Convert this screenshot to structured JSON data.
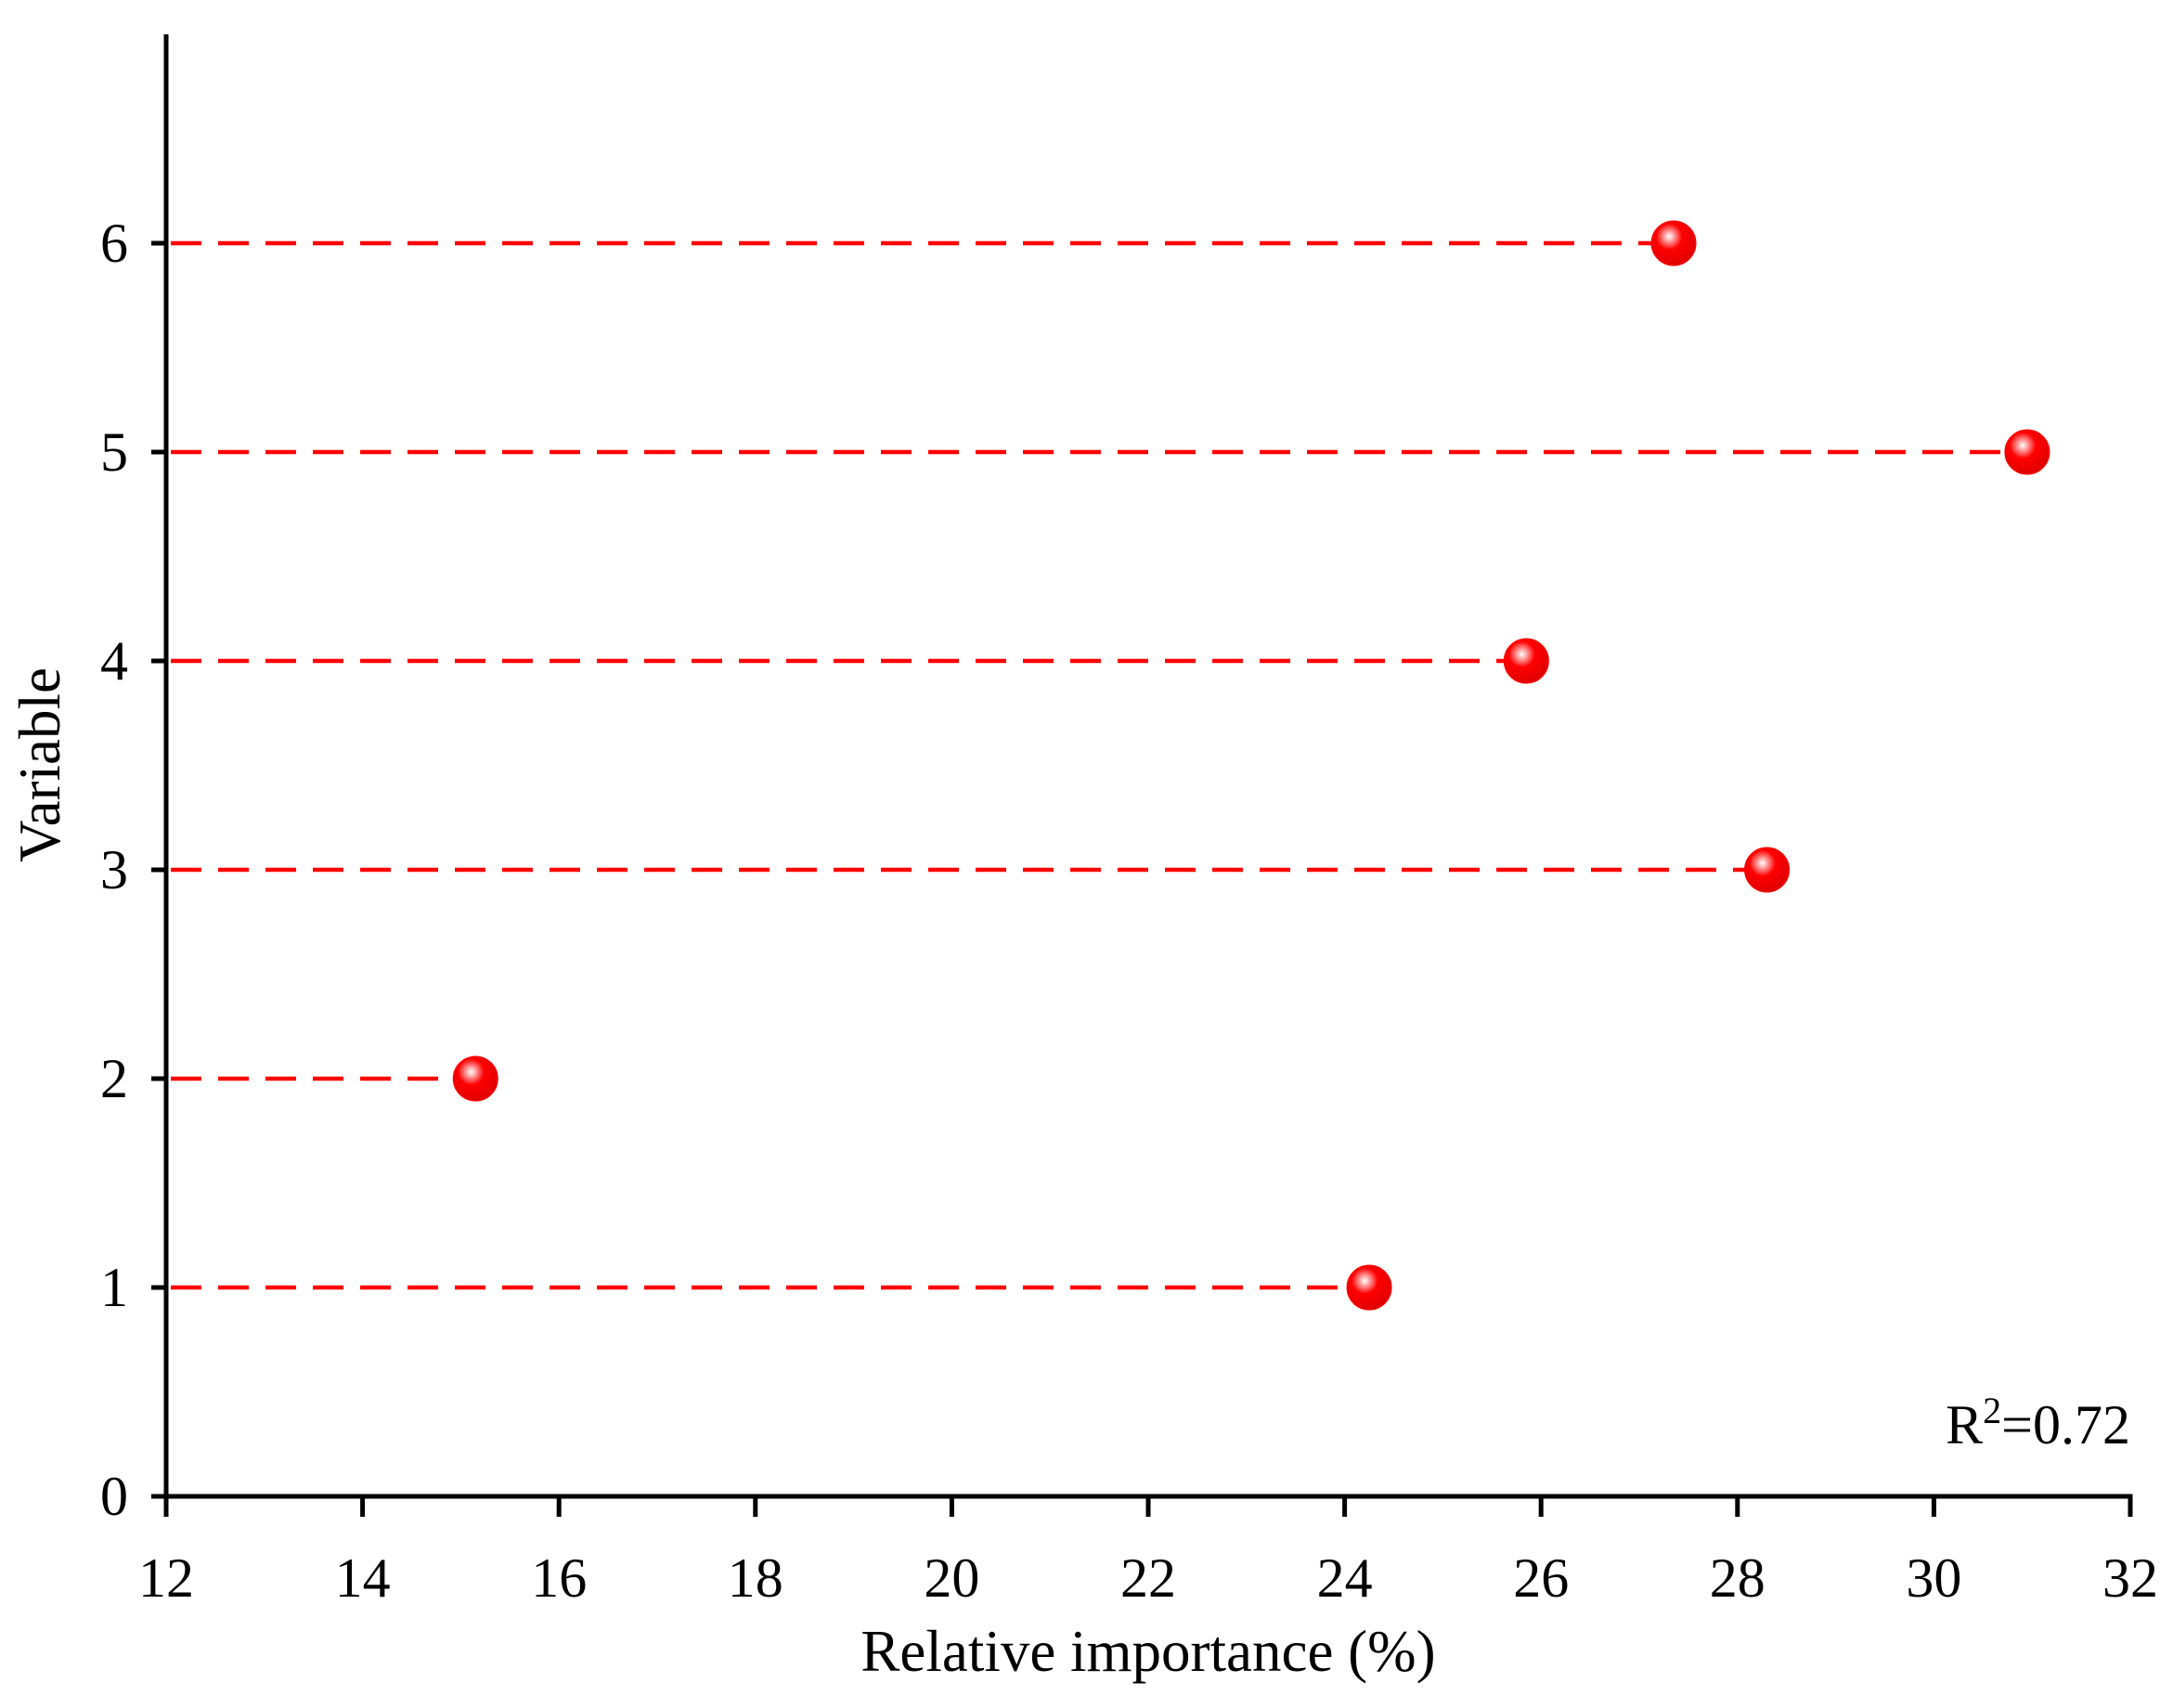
{
  "chart_data": {
    "type": "scatter",
    "stems": true,
    "xlabel": "Relative importance (%)",
    "ylabel": "Variable",
    "annotation": [
      "R",
      "2",
      "=0.72"
    ],
    "series": [
      {
        "color": "#ff0000",
        "x": [
          24.25,
          15.15,
          28.3,
          25.85,
          30.95,
          27.35
        ],
        "y": [
          1,
          2,
          3,
          4,
          5,
          6
        ]
      }
    ],
    "xlim": [
      12,
      32
    ],
    "xticks": [
      12,
      14,
      16,
      18,
      20,
      22,
      24,
      26,
      28,
      30,
      32
    ],
    "ylim": [
      0,
      7
    ],
    "yticks": [
      0,
      1,
      2,
      3,
      4,
      5,
      6
    ]
  }
}
